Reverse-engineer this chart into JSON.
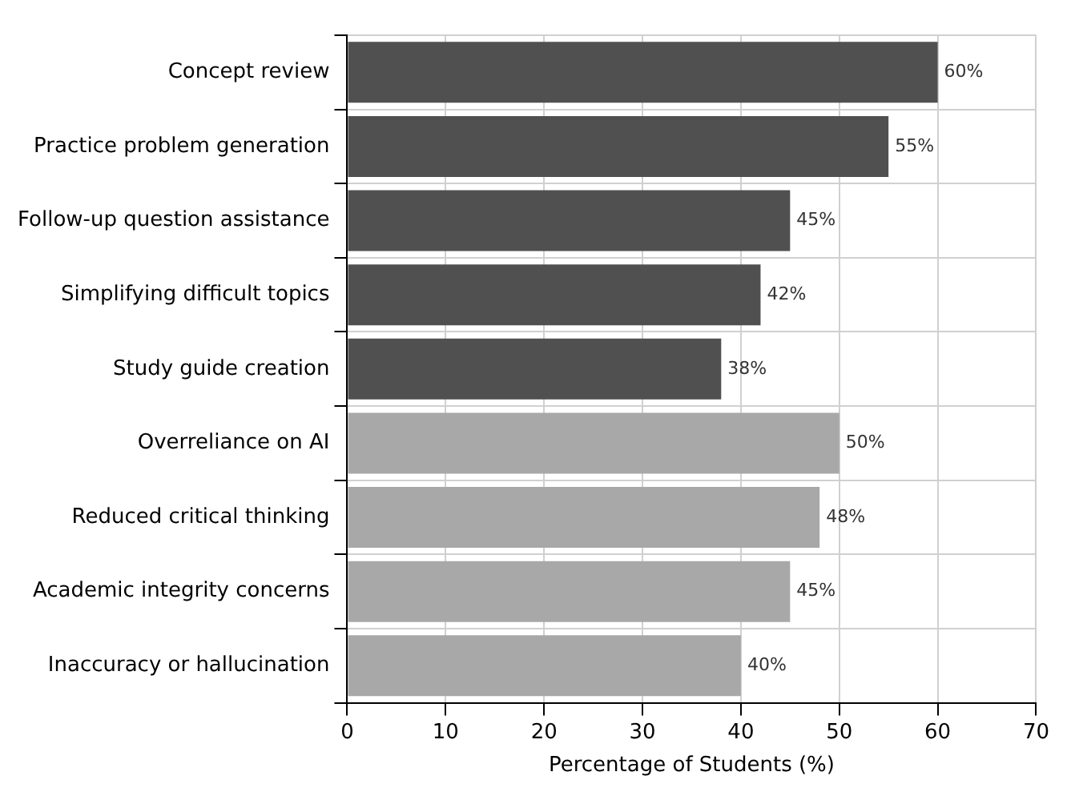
{
  "chart_data": {
    "type": "bar",
    "orientation": "horizontal",
    "xlabel": "Percentage of Students (%)",
    "categories": [
      "Concept review",
      "Practice problem generation",
      "Follow-up question assistance",
      "Simplifying difficult topics",
      "Study guide creation",
      "Overreliance on AI",
      "Reduced critical thinking",
      "Academic integrity concerns",
      "Inaccuracy or hallucination"
    ],
    "values": [
      60,
      55,
      45,
      42,
      38,
      50,
      48,
      45,
      40
    ],
    "colors": [
      "#505050",
      "#505050",
      "#505050",
      "#505050",
      "#505050",
      "#a8a8a8",
      "#a8a8a8",
      "#a8a8a8",
      "#a8a8a8"
    ],
    "value_labels": [
      "60%",
      "55%",
      "45%",
      "42%",
      "38%",
      "50%",
      "48%",
      "45%",
      "40%"
    ],
    "xlim": [
      0,
      70
    ],
    "xticks": [
      0,
      10,
      20,
      30,
      40,
      50,
      60,
      70
    ],
    "grid": true
  }
}
